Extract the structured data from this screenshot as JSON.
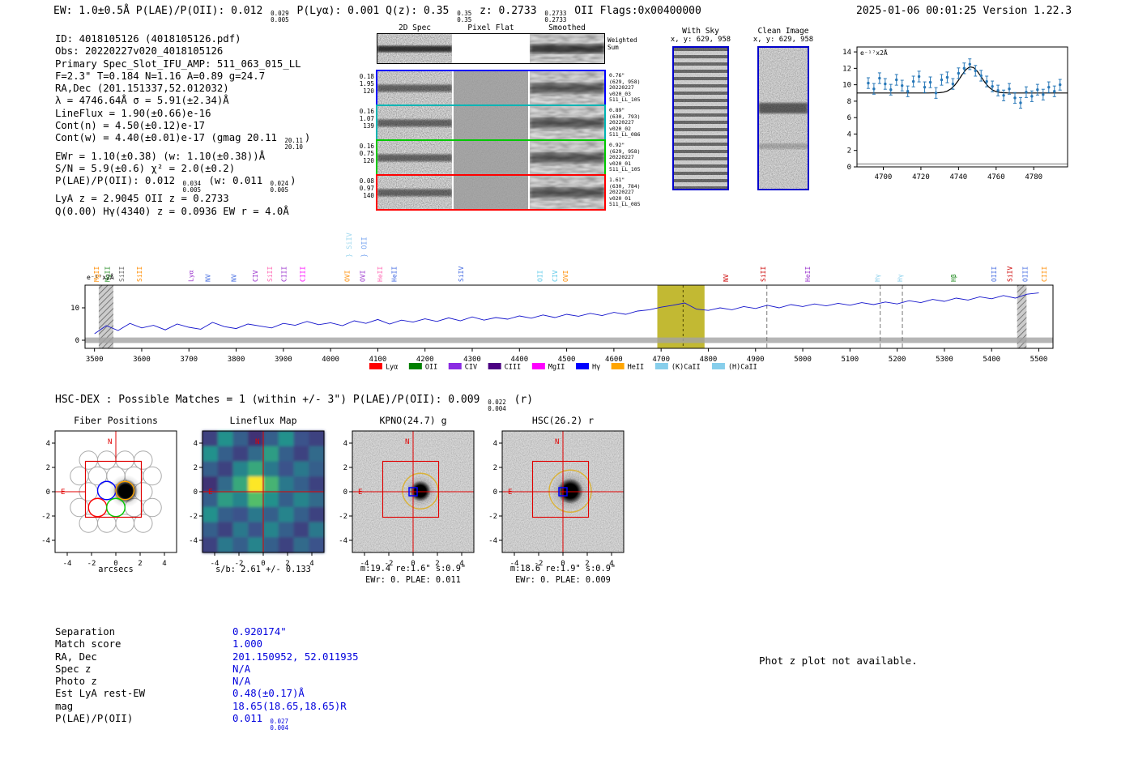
{
  "header": {
    "left_rich": "EW: 1.0±0.5Å  P(LAE)/P(OII): 0.012 {0.029|0.005}  P(Lyα): 0.001  Q(z): 0.35 {0.35|0.35}  z: 0.2733 {0.2733|0.2733} OII  Flags:0x00400000",
    "timestamp": "2025-01-06 00:01:25  Version 1.22.3"
  },
  "info_lines": [
    "ID: 4018105126 (4018105126.pdf)",
    "Obs: 20220227v020_4018105126",
    "Primary Spec_Slot_IFU_AMP: 511_063_015_LL",
    "F=2.3\"  T=0.184  N=1.16  A=0.89  g=24.7",
    "RA,Dec (201.151337,52.012032)",
    "λ = 4746.64Å  σ = 5.91(±2.34)Å",
    "LineFlux = 1.90(±0.66)e-16",
    "Cont(n) = 4.50(±0.12)e-17",
    "Cont(w) = 4.40(±0.01)e-17 (gmag 20.11 {20.11|20.10})",
    "EWr = 1.10(±0.38) (w: 1.10(±0.38))Å",
    "S/N = 5.9(±0.6)   χ² = 2.0(±0.2)",
    "P(LAE)/P(OII): 0.012 {0.034|0.005} (w: 0.011 {0.024|0.005})",
    "LyA z = 2.9045  OII z = 0.2733",
    "Q(0.00) Hγ(4340) z = 0.0936  EW r = 4.0Å"
  ],
  "spec2d": {
    "col_headers": [
      "2D Spec",
      "Pixel Flat",
      "Smoothed"
    ],
    "weighted_label": [
      "Weighted",
      "Sum"
    ],
    "rows": [
      {
        "border": "#0000ff",
        "left": [
          "0.18",
          "1.95",
          "120"
        ],
        "right": [
          "0.76\"",
          "(629, 958)",
          "20220227",
          "v020_03",
          "511_LL_105"
        ]
      },
      {
        "border": "#00b4b4",
        "left": [
          "0.16",
          "1.07",
          "139"
        ],
        "right": [
          "0.89\"",
          "(630, 793)",
          "20220227",
          "v020_02",
          "511_LL_086"
        ]
      },
      {
        "border": "#00c800",
        "left": [
          "0.16",
          "0.75",
          "120"
        ],
        "right": [
          "0.92\"",
          "(629, 958)",
          "20220227",
          "v020_01",
          "511_LL_105"
        ]
      },
      {
        "border": "#ff0000",
        "left": [
          "0.08",
          "0.97",
          "140"
        ],
        "right": [
          "1.61\"",
          "(630, 784)",
          "20220227",
          "v020_01",
          "511_LL_085"
        ]
      }
    ]
  },
  "withsky": {
    "title": "With Sky",
    "coords": "x, y: 629, 958"
  },
  "clean": {
    "title": "Clean Image",
    "coords": "x, y: 629, 958"
  },
  "hscdex_rich": "HSC-DEX : Possible Matches = 1 (within +/- 3\")  P(LAE)/P(OII): 0.009 {0.022|0.004} (r)",
  "cutouts": [
    {
      "title": "Fiber Positions",
      "xlabel": "arcsecs",
      "sub1": "",
      "sub2": ""
    },
    {
      "title": "Lineflux Map",
      "xlabel": "",
      "sub1": "s/b: 2.61 +/- 0.133",
      "sub2": ""
    },
    {
      "title": "KPNO(24.7) g",
      "xlabel": "",
      "sub1": "m:19.4 re:1.6\" s:0.9\"",
      "sub2": "EWr: 0. PLAE: 0.011"
    },
    {
      "title": "HSC(26.2) r",
      "xlabel": "",
      "sub1": "m:18.6 re:1.9\" s:0.9\"",
      "sub2": "EWr: 0. PLAE: 0.009"
    }
  ],
  "match_table": {
    "rows": [
      {
        "label": "Separation",
        "value": "0.920174\""
      },
      {
        "label": "Match score",
        "value": "1.000"
      },
      {
        "label": "RA, Dec",
        "value": "201.150952, 52.011935"
      },
      {
        "label": "Spec z",
        "value": "N/A"
      },
      {
        "label": "Photo z",
        "value": "N/A"
      },
      {
        "label": "Est LyA rest-EW",
        "value": "0.48(±0.17)Å"
      },
      {
        "label": "mag",
        "value": "18.65(18.65,18.65)R"
      },
      {
        "label": "P(LAE)/P(OII)",
        "value": "0.011 {0.027|0.004}"
      }
    ]
  },
  "photz_note": "Phot z plot not available.",
  "chart_data": [
    {
      "id": "zoom_spectrum",
      "type": "scatter",
      "annotation": "e⁻¹⁷x2Å",
      "xlim": [
        4686,
        4798
      ],
      "ylim": [
        0,
        14.6
      ],
      "xticks": [
        4700,
        4720,
        4740,
        4760,
        4780
      ],
      "yticks": [
        0,
        2,
        4,
        6,
        8,
        10,
        12,
        14
      ],
      "x_start": 4692,
      "x_step": 3,
      "y": [
        10.2,
        9.5,
        10.8,
        10.1,
        9.4,
        10.6,
        9.9,
        9.2,
        10.4,
        11.0,
        9.7,
        10.3,
        9.0,
        10.6,
        10.9,
        10.1,
        11.4,
        12.0,
        12.5,
        11.7,
        11.1,
        10.4,
        9.8,
        9.3,
        8.7,
        9.5,
        8.4,
        7.8,
        9.1,
        8.6,
        9.4,
        8.8,
        9.7,
        9.2,
        10.0
      ],
      "yerr": 0.65,
      "fit": {
        "type": "gaussian",
        "base": 9.0,
        "amp": 3.2,
        "mu": 4746.6,
        "sigma": 5.5
      },
      "baseline_y": 0.35,
      "point_color": "#2878b8",
      "fit_color": "#000000"
    },
    {
      "id": "main_spectrum",
      "type": "line",
      "annotation": "e⁻¹⁷x2Å",
      "xlim": [
        3480,
        5530
      ],
      "ylim": [
        -2.5,
        17
      ],
      "xticks": [
        3500,
        3600,
        3700,
        3800,
        3900,
        4000,
        4100,
        4200,
        4300,
        4400,
        4500,
        4600,
        4700,
        4800,
        4900,
        5000,
        5100,
        5200,
        5300,
        5400,
        5500
      ],
      "yticks": [
        0,
        10
      ],
      "x_start": 3500,
      "x_step": 25,
      "values": [
        2.0,
        4.5,
        3.0,
        5.2,
        3.8,
        4.6,
        3.2,
        5.0,
        4.0,
        3.4,
        5.5,
        4.2,
        3.6,
        5.0,
        4.4,
        3.8,
        5.2,
        4.6,
        5.8,
        4.8,
        5.4,
        4.5,
        6.0,
        5.2,
        6.4,
        5.0,
        6.2,
        5.6,
        6.6,
        5.8,
        6.9,
        6.0,
        7.2,
        6.2,
        7.0,
        6.5,
        7.5,
        6.8,
        7.8,
        7.0,
        8.0,
        7.4,
        8.3,
        7.6,
        8.6,
        8.0,
        9.0,
        9.4,
        10.2,
        10.8,
        11.5,
        9.6,
        9.2,
        10.0,
        9.4,
        10.4,
        9.8,
        10.8,
        10.0,
        11.0,
        10.4,
        11.2,
        10.6,
        11.4,
        10.8,
        11.6,
        11.0,
        11.8,
        11.2,
        12.2,
        11.6,
        12.6,
        12.0,
        13.0,
        12.4,
        13.4,
        12.8,
        13.8,
        13.0,
        14.2,
        14.6
      ],
      "err_band": 0.85,
      "line_color": "#1515cc",
      "highlight": {
        "x0": 4692,
        "x1": 4792,
        "center": 4746.6,
        "color": "#b3a700"
      },
      "hatch_bands": [
        [
          3509,
          3540
        ],
        [
          5454,
          5474
        ]
      ],
      "dashed_lines": [
        4924,
        5164,
        5211
      ],
      "line_markers": [
        {
          "wl": 3509,
          "label": "MgII",
          "color": "#ff8c00"
        },
        {
          "wl": 3532,
          "label": "MgII",
          "color": "#228b22"
        },
        {
          "wl": 3562,
          "label": "SiII",
          "color": "#666666"
        },
        {
          "wl": 3600,
          "label": "SiII",
          "color": "#ff8c00"
        },
        {
          "wl": 3709,
          "label": "Lyα",
          "color": "#9932cc"
        },
        {
          "wl": 3745,
          "label": "NV",
          "color": "#4169e1"
        },
        {
          "wl": 3800,
          "label": "NV",
          "color": "#4169e1"
        },
        {
          "wl": 3845,
          "label": "CIV",
          "color": "#9932cc"
        },
        {
          "wl": 3876,
          "label": "SiII",
          "color": "#ff69b4"
        },
        {
          "wl": 3906,
          "label": "CIII",
          "color": "#9932cc"
        },
        {
          "wl": 3946,
          "label": "CIII",
          "color": "#ff00ff"
        },
        {
          "wl": 4040,
          "label": "OVI",
          "color": "#ff8c00"
        },
        {
          "wl": 4073,
          "label": "OVI",
          "color": "#9932cc"
        },
        {
          "wl": 4110,
          "label": "HeII",
          "color": "#ff69b4"
        },
        {
          "wl": 4140,
          "label": "HeII",
          "color": "#4169e1"
        },
        {
          "wl": 4281,
          "label": "SiIV",
          "color": "#4169e1"
        },
        {
          "wl": 4448,
          "label": "OII",
          "color": "#5bc8e8"
        },
        {
          "wl": 4480,
          "label": "CIV",
          "color": "#5bc8e8"
        },
        {
          "wl": 4502,
          "label": "OVI",
          "color": "#ff8c00"
        },
        {
          "wl": 4842,
          "label": "NV",
          "color": "#cc0000"
        },
        {
          "wl": 4921,
          "label": "SiII",
          "color": "#cc0000"
        },
        {
          "wl": 5015,
          "label": "HeII",
          "color": "#9932cc"
        },
        {
          "wl": 5163,
          "label": "Hγ",
          "color": "#87ceeb"
        },
        {
          "wl": 5211,
          "label": "Hγ",
          "color": "#87ceeb"
        },
        {
          "wl": 5324,
          "label": "Hβ",
          "color": "#228b22"
        },
        {
          "wl": 5410,
          "label": "OIII",
          "color": "#4169e1"
        },
        {
          "wl": 5443,
          "label": "SiIV",
          "color": "#cc0000"
        },
        {
          "wl": 5476,
          "label": "OIII",
          "color": "#4169e1"
        },
        {
          "wl": 5516,
          "label": "CIII",
          "color": "#ff8c00"
        }
      ],
      "brace_markers": [
        {
          "wl": 4044,
          "label": "SiIV",
          "color": "#9fd8ef"
        },
        {
          "wl": 4076,
          "label": "OII",
          "color": "#7ba7f0"
        }
      ],
      "legend": [
        {
          "label": "Lyα",
          "color": "#ff0000"
        },
        {
          "label": "OII",
          "color": "#008000"
        },
        {
          "label": "CIV",
          "color": "#8a2be2"
        },
        {
          "label": "CIII",
          "color": "#4b0082"
        },
        {
          "label": "MgII",
          "color": "#ff00ff"
        },
        {
          "label": "Hγ",
          "color": "#0000ff"
        },
        {
          "label": "HeII",
          "color": "#ffa500"
        },
        {
          "label": "(K)CaII",
          "color": "#87ceeb"
        },
        {
          "label": "(H)CaII",
          "color": "#87ceeb"
        }
      ]
    },
    {
      "id": "fiber_positions",
      "type": "scatter",
      "axis_range": [
        -5,
        5
      ],
      "ticks": [
        -4,
        -2,
        0,
        2,
        4
      ],
      "fiber_radius": 0.75,
      "fibers": [
        [
          -2.25,
          2.6
        ],
        [
          -0.75,
          2.6
        ],
        [
          0.75,
          2.6
        ],
        [
          2.25,
          2.6
        ],
        [
          -3,
          1.3
        ],
        [
          -1.5,
          1.3
        ],
        [
          0,
          1.3
        ],
        [
          1.5,
          1.3
        ],
        [
          3,
          1.3
        ],
        [
          -2.25,
          0
        ],
        [
          2.25,
          0
        ],
        [
          -3,
          -1.3
        ],
        [
          1.5,
          -1.3
        ],
        [
          3,
          -1.3
        ],
        [
          -2.25,
          -2.6
        ],
        [
          -0.75,
          -2.6
        ],
        [
          0.75,
          -2.6
        ],
        [
          2.25,
          -2.6
        ]
      ],
      "highlight_fibers": [
        {
          "x": -0.75,
          "y": 0.1,
          "color": "#0000ff"
        },
        {
          "x": 0.75,
          "y": 0.1,
          "color": "#ffa500"
        },
        {
          "x": -1.5,
          "y": -1.3,
          "color": "#ff0000"
        },
        {
          "x": 0.0,
          "y": -1.3,
          "color": "#00cc00"
        }
      ],
      "source": {
        "x": 0.8,
        "y": 0.05,
        "r": 1.0
      },
      "box": {
        "x0": -2.5,
        "y0": -2.1,
        "x1": 2.1,
        "y1": 2.5,
        "color": "#e00000"
      },
      "north_label": "N",
      "east_label": "E",
      "compass_color": "#e00000"
    },
    {
      "id": "lineflux_map",
      "type": "heatmap",
      "axis_range": [
        -5,
        5
      ],
      "ticks": [
        -4,
        -2,
        0,
        2,
        4
      ],
      "palette": "viridis",
      "grid": [
        [
          0.2,
          0.5,
          0.3,
          0.15,
          0.3,
          0.5,
          0.25,
          0.2
        ],
        [
          0.5,
          0.3,
          0.2,
          0.35,
          0.55,
          0.3,
          0.2,
          0.35
        ],
        [
          0.3,
          0.2,
          0.45,
          0.6,
          0.4,
          0.25,
          0.4,
          0.3
        ],
        [
          0.15,
          0.35,
          0.6,
          1.0,
          0.65,
          0.4,
          0.3,
          0.2
        ],
        [
          0.3,
          0.55,
          0.45,
          0.7,
          0.5,
          0.3,
          0.45,
          0.35
        ],
        [
          0.5,
          0.3,
          0.25,
          0.4,
          0.3,
          0.45,
          0.3,
          0.2
        ],
        [
          0.3,
          0.2,
          0.4,
          0.25,
          0.45,
          0.3,
          0.2,
          0.4
        ],
        [
          0.2,
          0.4,
          0.3,
          0.45,
          0.3,
          0.2,
          0.35,
          0.25
        ]
      ],
      "north_label": "N",
      "east_label": "E",
      "compass_color": "#e00000"
    }
  ]
}
